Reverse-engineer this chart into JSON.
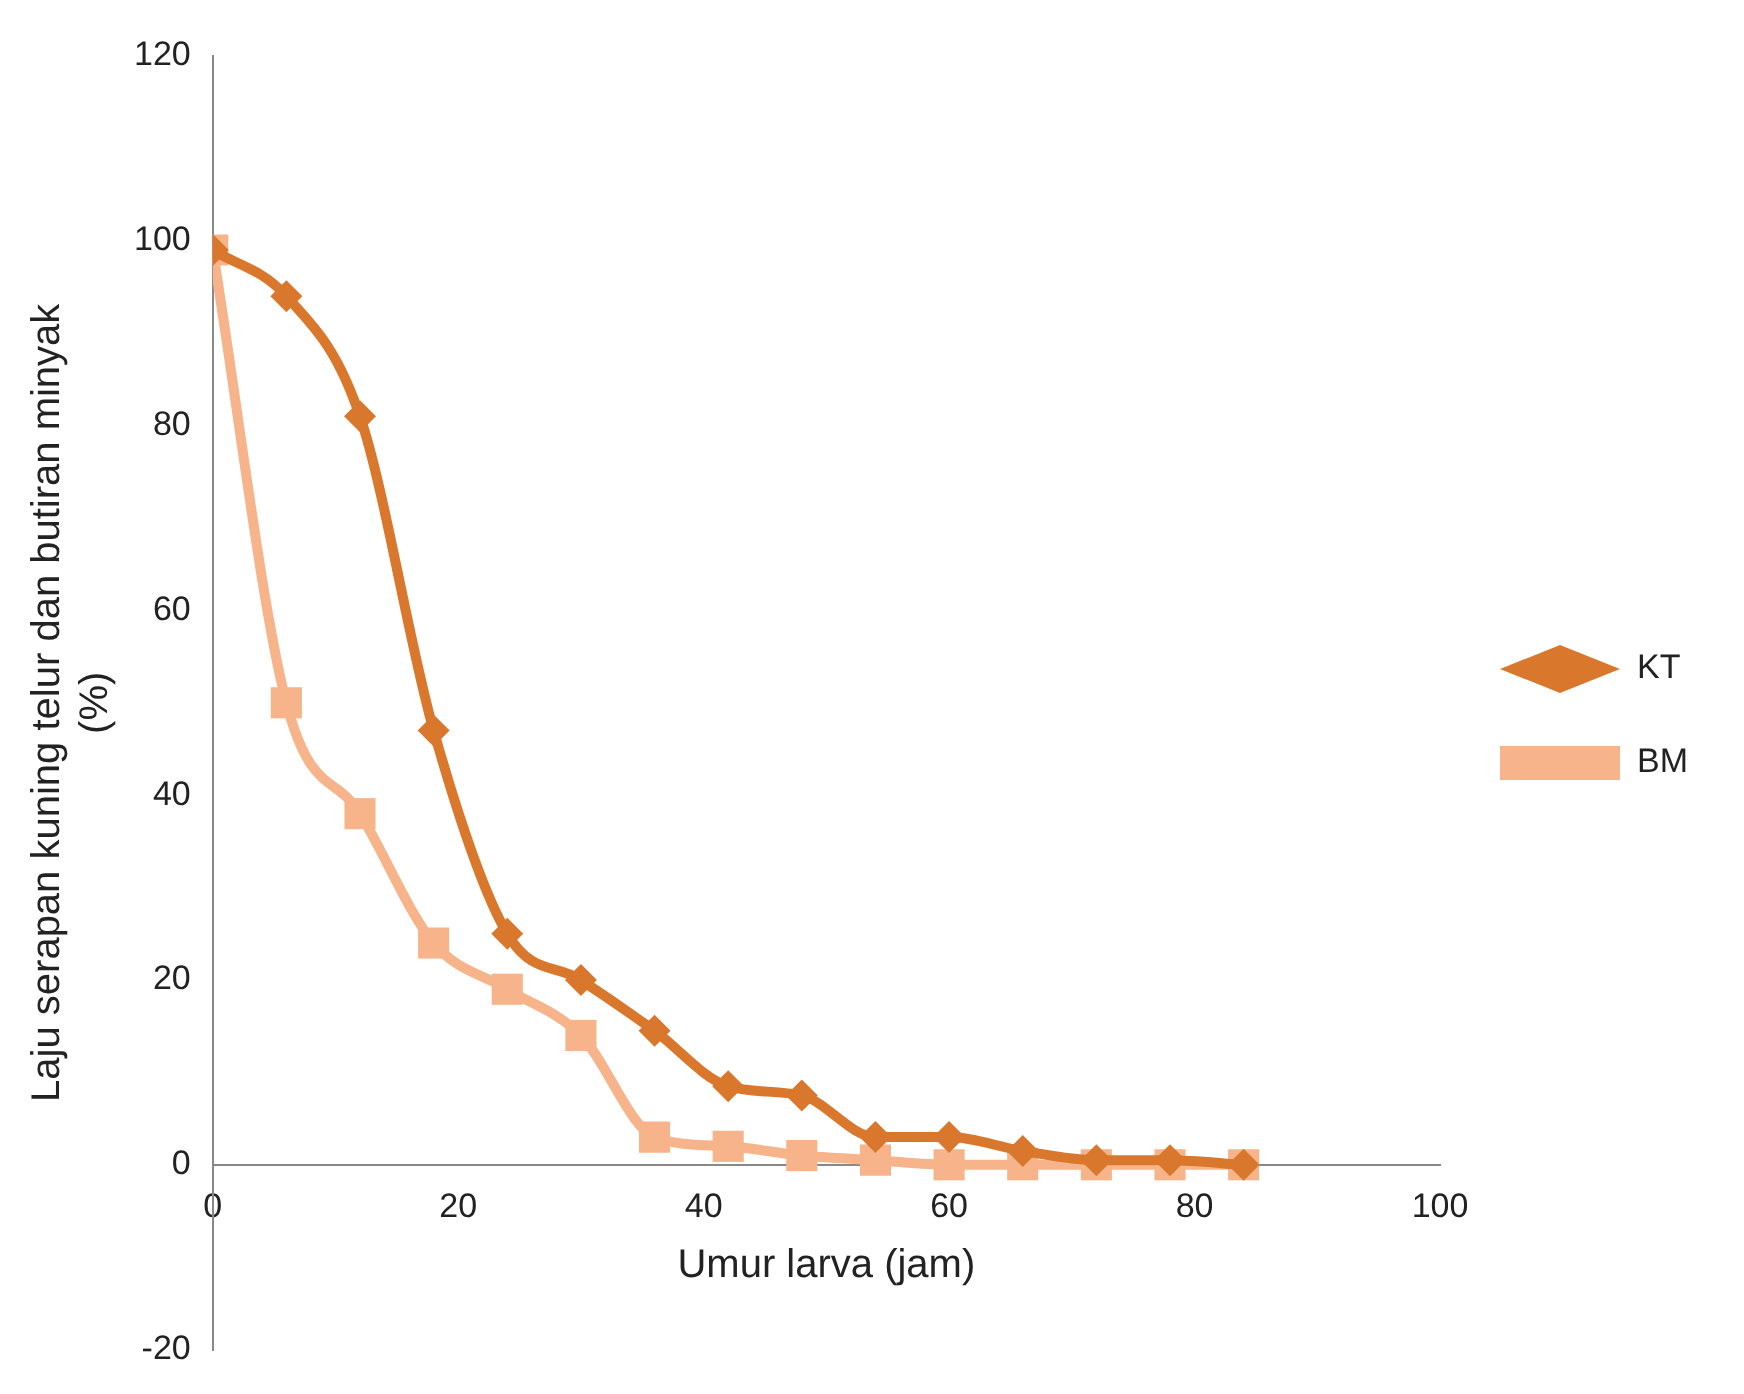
{
  "chart_data": {
    "type": "line",
    "xlabel": "Umur larva (jam)",
    "ylabel": "Laju serapan kuning telur dan butiran minyak\n(%)",
    "x": [
      0,
      6,
      12,
      18,
      24,
      30,
      36,
      42,
      48,
      54,
      60,
      66,
      72,
      78,
      84
    ],
    "series": [
      {
        "name": "KT",
        "color": "#d9782d",
        "marker": "diamond",
        "values": [
          99,
          94,
          81,
          47,
          25,
          20,
          14.5,
          8.5,
          7.5,
          3,
          3,
          1.5,
          0.5,
          0.5,
          0
        ]
      },
      {
        "name": "BM",
        "color": "#f7b48a",
        "marker": "square",
        "values": [
          99,
          50,
          38,
          24,
          19,
          14,
          3,
          2,
          1,
          0.5,
          0,
          0,
          0,
          0,
          0
        ]
      }
    ],
    "xlim": [
      0,
      100
    ],
    "xticks": [
      0,
      20,
      40,
      60,
      80,
      100
    ],
    "ylim": [
      -20,
      120
    ],
    "yticks": [
      -20,
      0,
      20,
      40,
      60,
      80,
      100,
      120
    ],
    "grid": false,
    "legend": "right",
    "line_style": "solid"
  }
}
